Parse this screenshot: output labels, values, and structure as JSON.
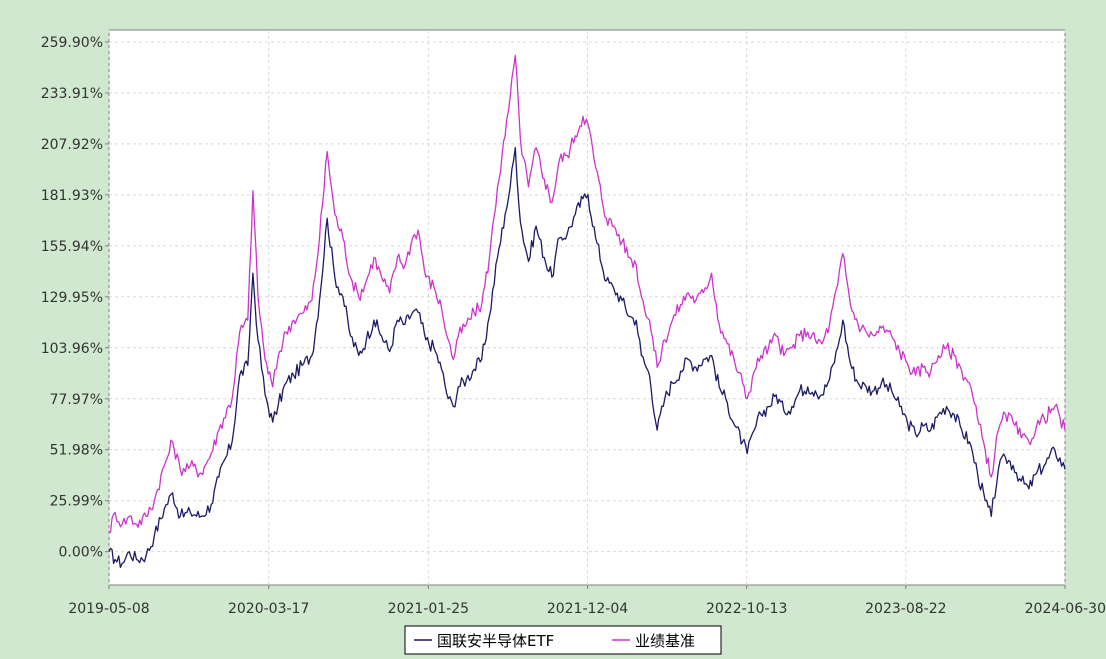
{
  "chart_data": {
    "type": "line",
    "title": "",
    "xlabel": "",
    "ylabel": "",
    "x_ticks": [
      "2019-05-08",
      "2020-03-17",
      "2021-01-25",
      "2021-12-04",
      "2022-10-13",
      "2023-08-22",
      "2024-06-30"
    ],
    "y_ticks": [
      "0.00%",
      "25.99%",
      "51.98%",
      "77.97%",
      "103.96%",
      "129.95%",
      "155.94%",
      "181.93%",
      "207.92%",
      "233.91%",
      "259.90%"
    ],
    "ylim": [
      -17,
      266
    ],
    "xlim": [
      "2019-05-08",
      "2024-06-30"
    ],
    "grid": true,
    "legend_position": "bottom-center",
    "series": [
      {
        "name": "国联安半导体ETF",
        "color": "#1a1a66",
        "points": [
          [
            "2019-05-08",
            0
          ],
          [
            "2019-05-20",
            -4
          ],
          [
            "2019-06-03",
            -6
          ],
          [
            "2019-06-17",
            0
          ],
          [
            "2019-07-01",
            -4
          ],
          [
            "2019-07-20",
            -2
          ],
          [
            "2019-08-05",
            8
          ],
          [
            "2019-08-25",
            22
          ],
          [
            "2019-09-10",
            30
          ],
          [
            "2019-09-25",
            18
          ],
          [
            "2019-10-15",
            20
          ],
          [
            "2019-11-05",
            18
          ],
          [
            "2019-11-25",
            24
          ],
          [
            "2019-12-10",
            38
          ],
          [
            "2020-01-05",
            56
          ],
          [
            "2020-01-20",
            90
          ],
          [
            "2020-02-05",
            95
          ],
          [
            "2020-02-15",
            142
          ],
          [
            "2020-02-25",
            108
          ],
          [
            "2020-03-10",
            80
          ],
          [
            "2020-03-25",
            66
          ],
          [
            "2020-04-05",
            75
          ],
          [
            "2020-04-20",
            86
          ],
          [
            "2020-05-05",
            90
          ],
          [
            "2020-05-25",
            96
          ],
          [
            "2020-06-10",
            100
          ],
          [
            "2020-06-25",
            128
          ],
          [
            "2020-07-10",
            170
          ],
          [
            "2020-07-25",
            140
          ],
          [
            "2020-08-10",
            130
          ],
          [
            "2020-08-25",
            110
          ],
          [
            "2020-09-10",
            100
          ],
          [
            "2020-09-25",
            108
          ],
          [
            "2020-10-10",
            118
          ],
          [
            "2020-10-25",
            110
          ],
          [
            "2020-11-10",
            102
          ],
          [
            "2020-11-25",
            118
          ],
          [
            "2020-12-10",
            116
          ],
          [
            "2020-12-25",
            122
          ],
          [
            "2021-01-05",
            122
          ],
          [
            "2021-01-20",
            108
          ],
          [
            "2021-02-05",
            104
          ],
          [
            "2021-02-20",
            93
          ],
          [
            "2021-03-05",
            78
          ],
          [
            "2021-03-15",
            74
          ],
          [
            "2021-03-25",
            84
          ],
          [
            "2021-04-10",
            88
          ],
          [
            "2021-04-25",
            93
          ],
          [
            "2021-05-10",
            98
          ],
          [
            "2021-05-25",
            120
          ],
          [
            "2021-06-10",
            150
          ],
          [
            "2021-06-25",
            172
          ],
          [
            "2021-07-05",
            186
          ],
          [
            "2021-07-15",
            206
          ],
          [
            "2021-07-25",
            168
          ],
          [
            "2021-08-10",
            148
          ],
          [
            "2021-08-25",
            166
          ],
          [
            "2021-09-10",
            150
          ],
          [
            "2021-09-25",
            140
          ],
          [
            "2021-10-10",
            160
          ],
          [
            "2021-10-25",
            162
          ],
          [
            "2021-11-10",
            172
          ],
          [
            "2021-11-25",
            180
          ],
          [
            "2021-12-05",
            182
          ],
          [
            "2021-12-20",
            160
          ],
          [
            "2022-01-10",
            138
          ],
          [
            "2022-01-25",
            134
          ],
          [
            "2022-02-10",
            128
          ],
          [
            "2022-02-25",
            120
          ],
          [
            "2022-03-10",
            118
          ],
          [
            "2022-03-20",
            100
          ],
          [
            "2022-04-05",
            90
          ],
          [
            "2022-04-20",
            62
          ],
          [
            "2022-05-05",
            78
          ],
          [
            "2022-05-20",
            86
          ],
          [
            "2022-06-05",
            92
          ],
          [
            "2022-06-20",
            98
          ],
          [
            "2022-07-05",
            94
          ],
          [
            "2022-07-20",
            98
          ],
          [
            "2022-08-05",
            100
          ],
          [
            "2022-08-20",
            84
          ],
          [
            "2022-09-05",
            76
          ],
          [
            "2022-09-20",
            64
          ],
          [
            "2022-10-05",
            56
          ],
          [
            "2022-10-14",
            50
          ],
          [
            "2022-10-28",
            62
          ],
          [
            "2022-11-10",
            70
          ],
          [
            "2022-11-25",
            74
          ],
          [
            "2022-12-10",
            80
          ],
          [
            "2022-12-25",
            72
          ],
          [
            "2023-01-10",
            74
          ],
          [
            "2023-01-25",
            82
          ],
          [
            "2023-02-10",
            84
          ],
          [
            "2023-02-25",
            82
          ],
          [
            "2023-03-10",
            80
          ],
          [
            "2023-03-25",
            88
          ],
          [
            "2023-04-10",
            104
          ],
          [
            "2023-04-20",
            118
          ],
          [
            "2023-05-05",
            96
          ],
          [
            "2023-05-20",
            86
          ],
          [
            "2023-06-05",
            84
          ],
          [
            "2023-06-20",
            82
          ],
          [
            "2023-07-05",
            86
          ],
          [
            "2023-07-25",
            82
          ],
          [
            "2023-08-10",
            74
          ],
          [
            "2023-08-25",
            66
          ],
          [
            "2023-09-10",
            60
          ],
          [
            "2023-09-25",
            64
          ],
          [
            "2023-10-10",
            62
          ],
          [
            "2023-10-25",
            70
          ],
          [
            "2023-11-10",
            74
          ],
          [
            "2023-11-25",
            70
          ],
          [
            "2023-12-10",
            62
          ],
          [
            "2023-12-25",
            56
          ],
          [
            "2024-01-10",
            40
          ],
          [
            "2024-01-25",
            26
          ],
          [
            "2024-02-06",
            18
          ],
          [
            "2024-02-20",
            42
          ],
          [
            "2024-03-05",
            48
          ],
          [
            "2024-03-20",
            44
          ],
          [
            "2024-04-05",
            36
          ],
          [
            "2024-04-20",
            32
          ],
          [
            "2024-05-05",
            40
          ],
          [
            "2024-05-20",
            44
          ],
          [
            "2024-06-10",
            52
          ],
          [
            "2024-06-30",
            42
          ]
        ]
      },
      {
        "name": "业绩基准",
        "color": "#cc33cc",
        "points": [
          [
            "2019-05-08",
            10
          ],
          [
            "2019-05-20",
            20
          ],
          [
            "2019-06-03",
            14
          ],
          [
            "2019-06-17",
            18
          ],
          [
            "2019-07-01",
            14
          ],
          [
            "2019-07-20",
            18
          ],
          [
            "2019-08-05",
            26
          ],
          [
            "2019-08-25",
            44
          ],
          [
            "2019-09-10",
            56
          ],
          [
            "2019-09-25",
            42
          ],
          [
            "2019-10-15",
            44
          ],
          [
            "2019-11-05",
            40
          ],
          [
            "2019-11-25",
            50
          ],
          [
            "2019-12-10",
            62
          ],
          [
            "2020-01-05",
            78
          ],
          [
            "2020-01-20",
            112
          ],
          [
            "2020-02-05",
            118
          ],
          [
            "2020-02-15",
            184
          ],
          [
            "2020-02-25",
            130
          ],
          [
            "2020-03-10",
            98
          ],
          [
            "2020-03-25",
            84
          ],
          [
            "2020-04-05",
            100
          ],
          [
            "2020-04-20",
            112
          ],
          [
            "2020-05-05",
            118
          ],
          [
            "2020-05-25",
            122
          ],
          [
            "2020-06-10",
            128
          ],
          [
            "2020-06-25",
            160
          ],
          [
            "2020-07-10",
            204
          ],
          [
            "2020-07-25",
            172
          ],
          [
            "2020-08-10",
            160
          ],
          [
            "2020-08-25",
            140
          ],
          [
            "2020-09-10",
            130
          ],
          [
            "2020-09-25",
            138
          ],
          [
            "2020-10-10",
            150
          ],
          [
            "2020-10-25",
            140
          ],
          [
            "2020-11-10",
            132
          ],
          [
            "2020-11-25",
            150
          ],
          [
            "2020-12-10",
            146
          ],
          [
            "2020-12-25",
            160
          ],
          [
            "2021-01-05",
            164
          ],
          [
            "2021-01-20",
            140
          ],
          [
            "2021-02-05",
            135
          ],
          [
            "2021-02-20",
            124
          ],
          [
            "2021-03-05",
            108
          ],
          [
            "2021-03-15",
            98
          ],
          [
            "2021-03-25",
            110
          ],
          [
            "2021-04-10",
            116
          ],
          [
            "2021-04-25",
            122
          ],
          [
            "2021-05-10",
            126
          ],
          [
            "2021-05-25",
            150
          ],
          [
            "2021-06-10",
            186
          ],
          [
            "2021-06-25",
            212
          ],
          [
            "2021-07-05",
            232
          ],
          [
            "2021-07-15",
            253
          ],
          [
            "2021-07-25",
            210
          ],
          [
            "2021-08-10",
            186
          ],
          [
            "2021-08-25",
            206
          ],
          [
            "2021-09-10",
            190
          ],
          [
            "2021-09-25",
            178
          ],
          [
            "2021-10-10",
            200
          ],
          [
            "2021-10-25",
            202
          ],
          [
            "2021-11-10",
            212
          ],
          [
            "2021-11-25",
            222
          ],
          [
            "2021-12-05",
            218
          ],
          [
            "2021-12-20",
            196
          ],
          [
            "2022-01-10",
            170
          ],
          [
            "2022-01-25",
            166
          ],
          [
            "2022-02-10",
            158
          ],
          [
            "2022-02-25",
            150
          ],
          [
            "2022-03-10",
            146
          ],
          [
            "2022-03-20",
            130
          ],
          [
            "2022-04-05",
            118
          ],
          [
            "2022-04-20",
            94
          ],
          [
            "2022-05-05",
            108
          ],
          [
            "2022-05-20",
            118
          ],
          [
            "2022-06-05",
            126
          ],
          [
            "2022-06-20",
            132
          ],
          [
            "2022-07-05",
            128
          ],
          [
            "2022-07-20",
            132
          ],
          [
            "2022-08-05",
            142
          ],
          [
            "2022-08-20",
            116
          ],
          [
            "2022-09-05",
            106
          ],
          [
            "2022-09-20",
            96
          ],
          [
            "2022-10-05",
            86
          ],
          [
            "2022-10-14",
            78
          ],
          [
            "2022-10-28",
            92
          ],
          [
            "2022-11-10",
            100
          ],
          [
            "2022-11-25",
            104
          ],
          [
            "2022-12-10",
            110
          ],
          [
            "2022-12-25",
            100
          ],
          [
            "2023-01-10",
            104
          ],
          [
            "2023-01-25",
            110
          ],
          [
            "2023-02-10",
            112
          ],
          [
            "2023-02-25",
            108
          ],
          [
            "2023-03-10",
            106
          ],
          [
            "2023-03-25",
            116
          ],
          [
            "2023-04-10",
            136
          ],
          [
            "2023-04-20",
            152
          ],
          [
            "2023-05-05",
            126
          ],
          [
            "2023-05-20",
            116
          ],
          [
            "2023-06-05",
            112
          ],
          [
            "2023-06-20",
            110
          ],
          [
            "2023-07-05",
            114
          ],
          [
            "2023-07-25",
            110
          ],
          [
            "2023-08-10",
            102
          ],
          [
            "2023-08-25",
            96
          ],
          [
            "2023-09-10",
            90
          ],
          [
            "2023-09-25",
            94
          ],
          [
            "2023-10-10",
            92
          ],
          [
            "2023-10-25",
            100
          ],
          [
            "2023-11-10",
            104
          ],
          [
            "2023-11-25",
            100
          ],
          [
            "2023-12-10",
            92
          ],
          [
            "2023-12-25",
            86
          ],
          [
            "2024-01-10",
            68
          ],
          [
            "2024-01-25",
            52
          ],
          [
            "2024-02-06",
            38
          ],
          [
            "2024-02-20",
            62
          ],
          [
            "2024-03-05",
            70
          ],
          [
            "2024-03-20",
            66
          ],
          [
            "2024-04-05",
            58
          ],
          [
            "2024-04-20",
            56
          ],
          [
            "2024-05-05",
            64
          ],
          [
            "2024-05-20",
            68
          ],
          [
            "2024-06-10",
            74
          ],
          [
            "2024-06-30",
            62
          ]
        ]
      }
    ]
  },
  "legend": {
    "items": [
      {
        "label": "国联安半导体ETF",
        "color": "#1a1a66"
      },
      {
        "label": "业绩基准",
        "color": "#cc33cc"
      }
    ]
  }
}
